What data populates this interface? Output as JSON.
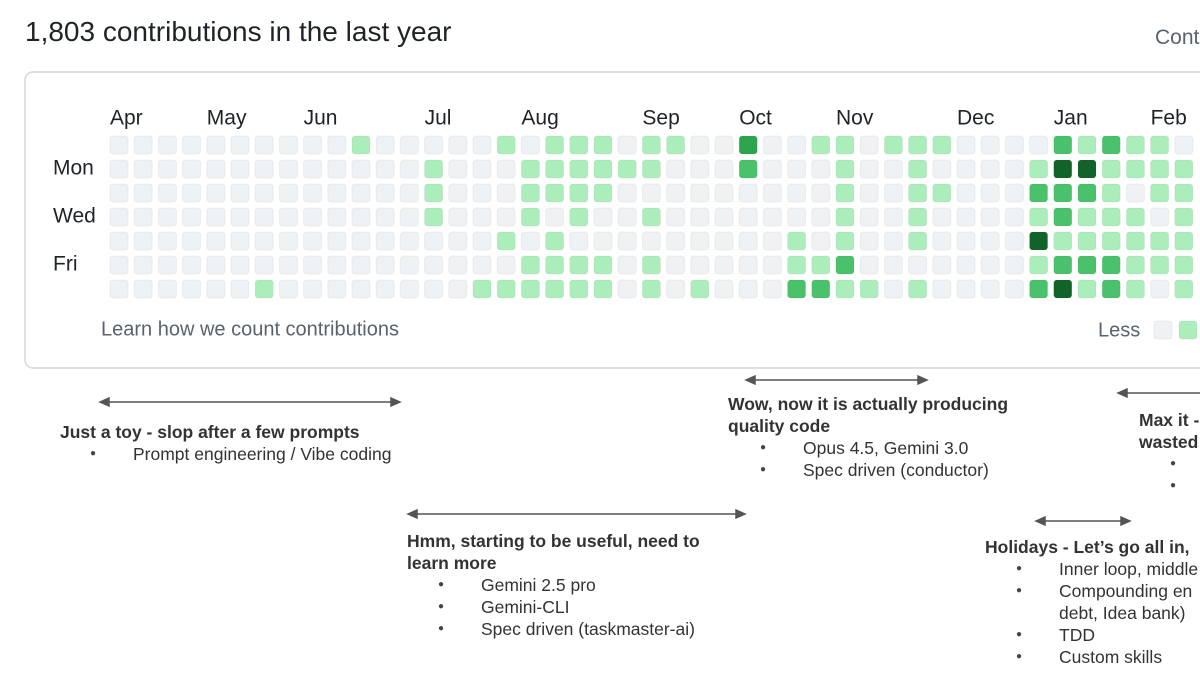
{
  "header": {
    "title": "1,803 contributions in the last year",
    "settings": "Cont"
  },
  "graph": {
    "month_labels": [
      "Apr",
      null,
      null,
      null,
      "May",
      null,
      null,
      null,
      "Jun",
      null,
      null,
      null,
      null,
      "Jul",
      null,
      null,
      null,
      "Aug",
      null,
      null,
      null,
      null,
      "Sep",
      null,
      null,
      null,
      "Oct",
      null,
      null,
      null,
      "Nov",
      null,
      null,
      null,
      null,
      "Dec",
      null,
      null,
      null,
      "Jan",
      null,
      null,
      null,
      "Feb",
      null
    ],
    "day_labels": [
      null,
      "Mon",
      null,
      "Wed",
      null,
      "Fri",
      null
    ],
    "level_colors": [
      "#eff2f5",
      "#aceebb",
      "#4ac26b",
      "#2da44e",
      "#116329"
    ],
    "weeks": [
      [
        0,
        0,
        0,
        0,
        0,
        0,
        0
      ],
      [
        0,
        0,
        0,
        0,
        0,
        0,
        0
      ],
      [
        0,
        0,
        0,
        0,
        0,
        0,
        0
      ],
      [
        0,
        0,
        0,
        0,
        0,
        0,
        0
      ],
      [
        0,
        0,
        0,
        0,
        0,
        0,
        0
      ],
      [
        0,
        0,
        0,
        0,
        0,
        0,
        0
      ],
      [
        0,
        0,
        0,
        0,
        0,
        0,
        1
      ],
      [
        0,
        0,
        0,
        0,
        0,
        0,
        0
      ],
      [
        0,
        0,
        0,
        0,
        0,
        0,
        0
      ],
      [
        0,
        0,
        0,
        0,
        0,
        0,
        0
      ],
      [
        1,
        0,
        0,
        0,
        0,
        0,
        0
      ],
      [
        0,
        0,
        0,
        0,
        0,
        0,
        0
      ],
      [
        0,
        0,
        0,
        0,
        0,
        0,
        0
      ],
      [
        0,
        1,
        1,
        1,
        0,
        0,
        0
      ],
      [
        0,
        0,
        0,
        0,
        0,
        0,
        0
      ],
      [
        0,
        0,
        0,
        0,
        0,
        0,
        1
      ],
      [
        1,
        0,
        0,
        0,
        1,
        0,
        1
      ],
      [
        0,
        1,
        1,
        1,
        0,
        1,
        1
      ],
      [
        1,
        1,
        1,
        0,
        1,
        1,
        1
      ],
      [
        1,
        1,
        1,
        1,
        0,
        1,
        1
      ],
      [
        1,
        1,
        1,
        0,
        0,
        1,
        1
      ],
      [
        0,
        1,
        0,
        0,
        0,
        0,
        0
      ],
      [
        1,
        1,
        0,
        1,
        0,
        1,
        1
      ],
      [
        1,
        0,
        0,
        0,
        0,
        0,
        0
      ],
      [
        0,
        0,
        0,
        0,
        0,
        0,
        1
      ],
      [
        0,
        0,
        0,
        0,
        0,
        0,
        0
      ],
      [
        3,
        2,
        0,
        0,
        0,
        0,
        0
      ],
      [
        0,
        0,
        0,
        0,
        0,
        0,
        0
      ],
      [
        0,
        0,
        0,
        0,
        1,
        1,
        2
      ],
      [
        1,
        0,
        0,
        0,
        0,
        1,
        2
      ],
      [
        1,
        1,
        1,
        1,
        1,
        2,
        1
      ],
      [
        0,
        0,
        0,
        0,
        0,
        0,
        1
      ],
      [
        1,
        0,
        0,
        0,
        0,
        0,
        0
      ],
      [
        1,
        1,
        1,
        1,
        1,
        0,
        1
      ],
      [
        1,
        0,
        1,
        0,
        0,
        0,
        0
      ],
      [
        0,
        0,
        0,
        0,
        0,
        0,
        0
      ],
      [
        0,
        0,
        0,
        0,
        0,
        0,
        0
      ],
      [
        0,
        0,
        0,
        0,
        0,
        0,
        0
      ],
      [
        0,
        1,
        2,
        1,
        4,
        1,
        2
      ],
      [
        2,
        4,
        2,
        2,
        1,
        2,
        4
      ],
      [
        1,
        4,
        2,
        1,
        1,
        2,
        1
      ],
      [
        2,
        1,
        1,
        1,
        1,
        2,
        2
      ],
      [
        1,
        1,
        0,
        1,
        1,
        1,
        1
      ],
      [
        1,
        1,
        1,
        0,
        1,
        1,
        0
      ],
      [
        0,
        1,
        1,
        1,
        1,
        1,
        1
      ]
    ],
    "footer_link": "Learn how we count contributions",
    "legend_less": "Less"
  },
  "annotations": [
    {
      "title": [
        "Just a toy - slop after a few prompts"
      ],
      "bullets": [
        [
          "Prompt engineering / Vibe coding"
        ]
      ]
    },
    {
      "title": [
        "Hmm, starting to be useful, need to",
        "learn more"
      ],
      "bullets": [
        [
          "Gemini 2.5 pro"
        ],
        [
          "Gemini-CLI"
        ],
        [
          "Spec driven (taskmaster-ai)"
        ]
      ]
    },
    {
      "title": [
        "Wow, now it is actually producing",
        "quality code"
      ],
      "bullets": [
        [
          "Opus 4.5, Gemini 3.0"
        ],
        [
          "Spec driven (conductor)"
        ]
      ]
    },
    {
      "title": [
        "Max it -",
        "wasted"
      ]
    },
    {
      "title": [
        "Holidays - Let’s go all in,"
      ],
      "bullets": [
        [
          "Inner loop, middle"
        ],
        [
          "Compounding en",
          "debt, Idea bank)"
        ],
        [
          "TDD"
        ],
        [
          "Custom skills"
        ]
      ]
    }
  ]
}
